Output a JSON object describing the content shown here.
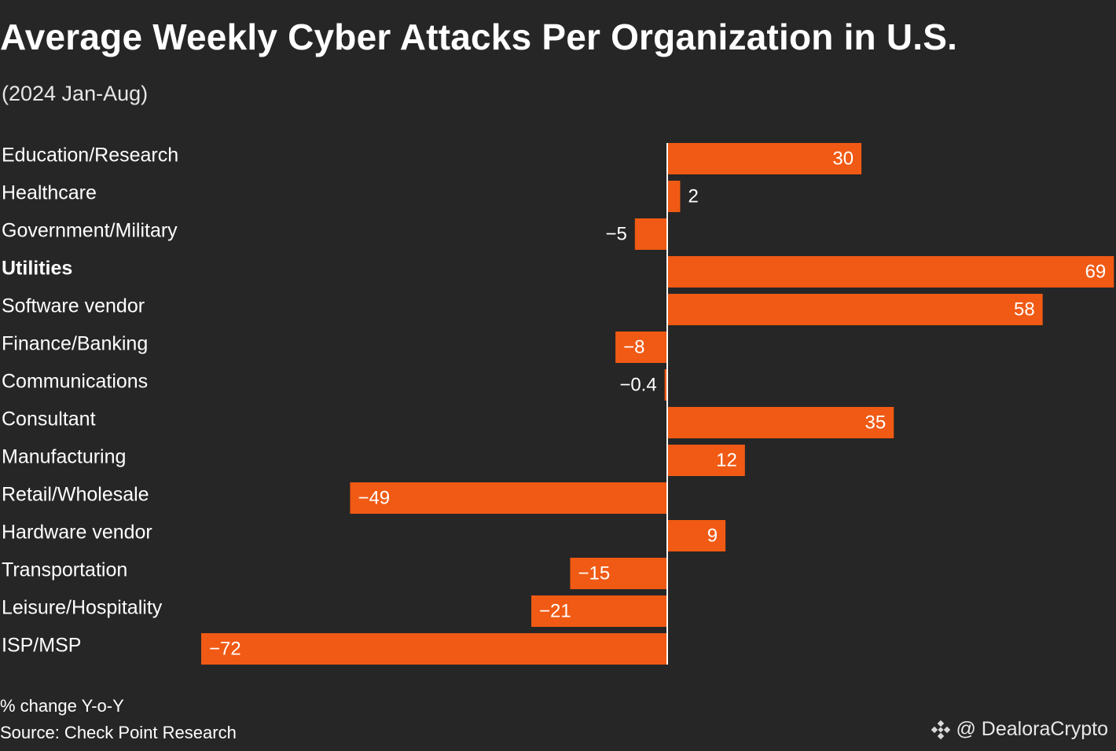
{
  "title": "Average Weekly Cyber Attacks Per Organization in U.S.",
  "subtitle": "(2024 Jan-Aug)",
  "footnote": "% change Y-o-Y",
  "source": "Source: Check Point Research",
  "watermark": "@ DealoraCrypto",
  "colors": {
    "background": "#262626",
    "bar": "#f05a14",
    "text": "#ffffff",
    "axis": "#ffffff"
  },
  "chart_data": {
    "type": "bar",
    "orientation": "horizontal",
    "title": "Average Weekly Cyber Attacks Per Organization in U.S.",
    "subtitle": "(2024 Jan-Aug)",
    "xlabel": "% change Y-o-Y",
    "ylabel": "",
    "xlim": [
      -72,
      69
    ],
    "highlight": "Utilities",
    "categories": [
      "Education/Research",
      "Healthcare",
      "Government/Military",
      "Utilities",
      "Software vendor",
      "Finance/Banking",
      "Communications",
      "Consultant",
      "Manufacturing",
      "Retail/Wholesale",
      "Hardware vendor",
      "Transportation",
      "Leisure/Hospitality",
      "ISP/MSP"
    ],
    "values": [
      30,
      2,
      -5,
      69,
      58,
      -8,
      -0.4,
      35,
      12,
      -49,
      9,
      -15,
      -21,
      -72
    ],
    "labels": [
      "30",
      "2",
      "−5",
      "69",
      "58",
      "−8",
      "−0.4",
      "35",
      "12",
      "−49",
      "9",
      "−15",
      "−21",
      "−72"
    ]
  }
}
